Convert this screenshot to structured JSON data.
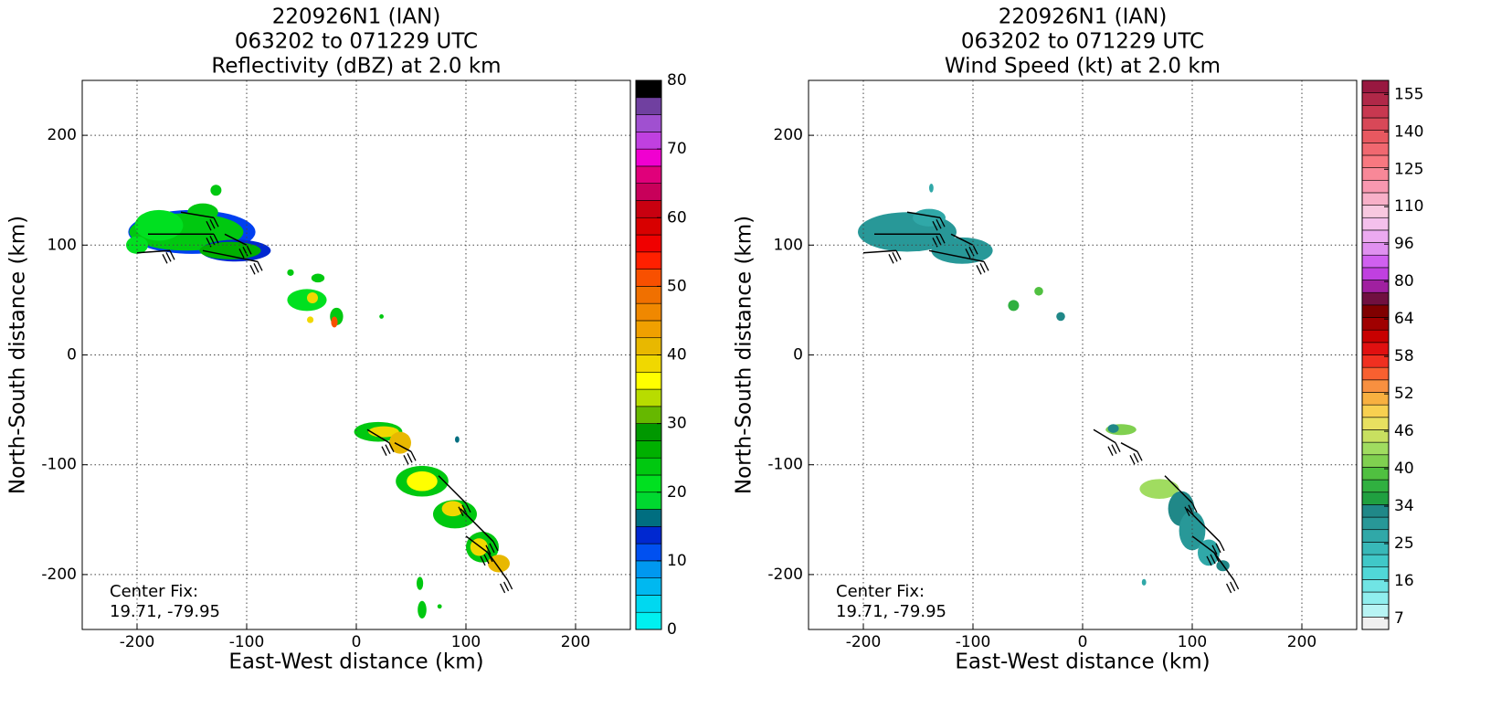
{
  "chart_data": [
    {
      "type": "heatmap",
      "title": [
        "220926N1 (IAN)",
        "063202 to 071229 UTC",
        "Reflectivity (dBZ) at 2.0 km"
      ],
      "xlabel": "East-West distance (km)",
      "ylabel": "North-South distance (km)",
      "xlim": [
        -250,
        250
      ],
      "ylim": [
        -250,
        250
      ],
      "xticks": [
        -200,
        -100,
        0,
        100,
        200
      ],
      "yticks": [
        -200,
        -100,
        0,
        100,
        200
      ],
      "grid": true,
      "annotation": [
        "Center Fix:",
        "19.71, -79.95"
      ],
      "colorbar": {
        "lim": [
          0,
          80
        ],
        "ticks": [
          0,
          10,
          20,
          30,
          40,
          50,
          60,
          70,
          80
        ],
        "colors": [
          "#00f0f0",
          "#00d8f0",
          "#00b8f0",
          "#0098f0",
          "#0050f0",
          "#0028d0",
          "#006e80",
          "#00d830",
          "#00e020",
          "#00c810",
          "#00b000",
          "#009800",
          "#66b800",
          "#b8dc00",
          "#ffff00",
          "#f0d800",
          "#e8b800",
          "#f0a000",
          "#f08800",
          "#f07000",
          "#f85000",
          "#ff2000",
          "#f00000",
          "#d80000",
          "#c80010",
          "#c8005a",
          "#e0007a",
          "#f000d0",
          "#c040e0",
          "#a050d0",
          "#7040a0",
          "#000000"
        ]
      }
    },
    {
      "type": "heatmap",
      "title": [
        "220926N1 (IAN)",
        "063202 to 071229 UTC",
        "Wind Speed (kt) at 2.0 km"
      ],
      "xlabel": "East-West distance (km)",
      "ylabel": "North-South distance (km)",
      "xlim": [
        -250,
        250
      ],
      "ylim": [
        -250,
        250
      ],
      "xticks": [
        -200,
        -100,
        0,
        100,
        200
      ],
      "yticks": [
        -200,
        -100,
        0,
        100,
        200
      ],
      "grid": true,
      "annotation": [
        "Center Fix:",
        "19.71, -79.95"
      ],
      "colorbar": {
        "ticks": [
          7,
          16,
          25,
          34,
          40,
          46,
          52,
          58,
          64,
          80,
          96,
          110,
          125,
          140,
          155
        ],
        "colors": [
          "#f0f0f0",
          "#b8f4f4",
          "#90eeee",
          "#70e4e4",
          "#50d8d8",
          "#40c8c8",
          "#38b8b8",
          "#30a8a8",
          "#289898",
          "#208888",
          "#20a040",
          "#30b040",
          "#50c040",
          "#80d050",
          "#a0dc60",
          "#c8e060",
          "#e8e060",
          "#f8d050",
          "#f8b040",
          "#f89040",
          "#f86030",
          "#f03020",
          "#e01010",
          "#c80000",
          "#a00000",
          "#800000",
          "#701040",
          "#a020a0",
          "#c040e0",
          "#d060f0",
          "#e090f0",
          "#ecaaf0",
          "#f4c0ec",
          "#f8c8e0",
          "#f8b0c8",
          "#f898b0",
          "#f88898",
          "#f87880",
          "#f06870",
          "#e85860",
          "#d84858",
          "#c83850",
          "#b02848",
          "#981840"
        ]
      }
    }
  ]
}
